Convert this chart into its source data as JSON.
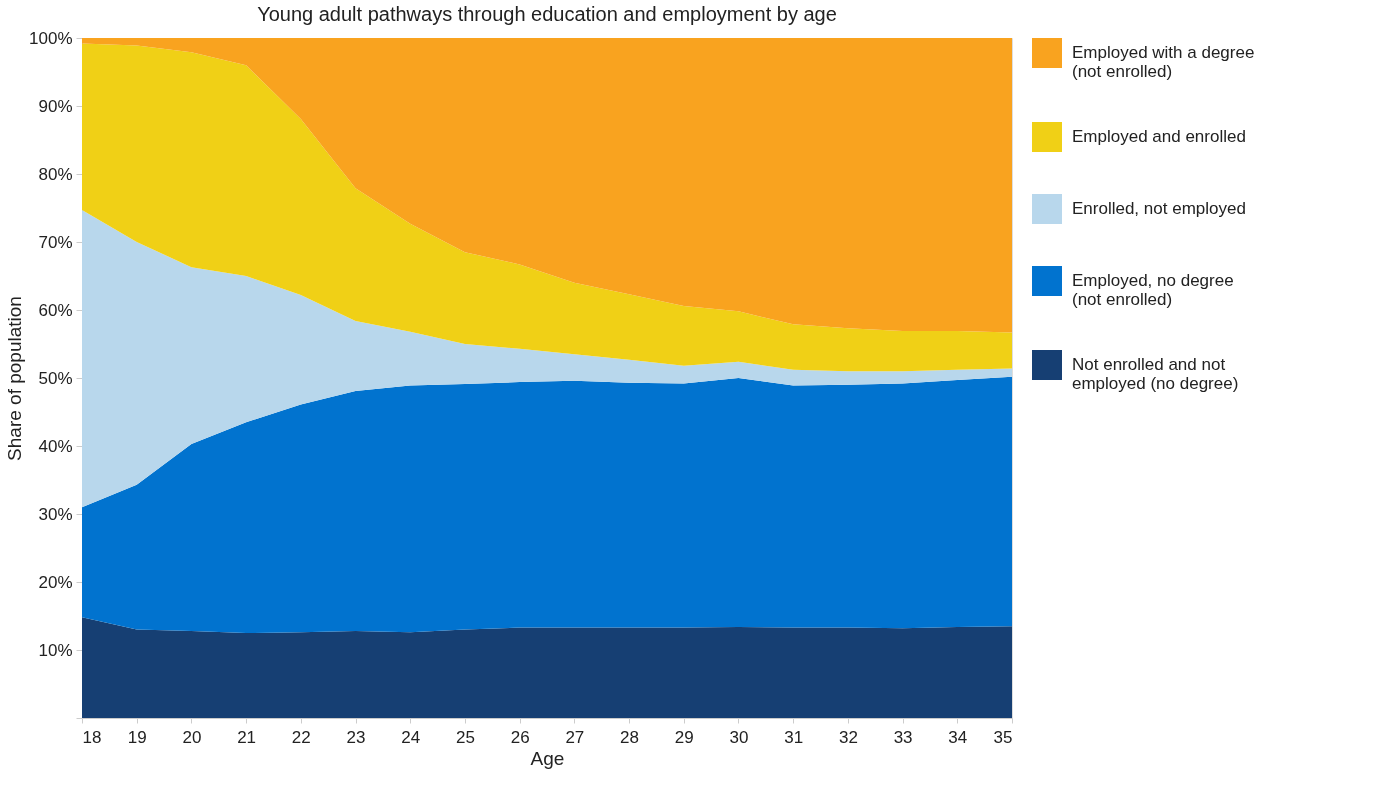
{
  "chart_data": {
    "type": "area",
    "stacked": true,
    "title": "Young adult pathways through education and employment by age",
    "xlabel": "Age",
    "ylabel": "Share of population",
    "x": [
      18,
      19,
      20,
      21,
      22,
      23,
      24,
      25,
      26,
      27,
      28,
      29,
      30,
      31,
      32,
      33,
      34,
      35
    ],
    "xlim": [
      18,
      35
    ],
    "xticks": [
      18,
      19,
      20,
      21,
      22,
      23,
      24,
      25,
      26,
      27,
      28,
      29,
      30,
      31,
      32,
      33,
      34,
      35
    ],
    "ylim": [
      0,
      100
    ],
    "yticks": [
      {
        "value": 0,
        "label": null
      },
      {
        "value": 10,
        "label": "10%"
      },
      {
        "value": 20,
        "label": "20%"
      },
      {
        "value": 30,
        "label": "30%"
      },
      {
        "value": 40,
        "label": "40%"
      },
      {
        "value": 50,
        "label": "50%"
      },
      {
        "value": 60,
        "label": "60%"
      },
      {
        "value": 70,
        "label": "70%"
      },
      {
        "value": 80,
        "label": "80%"
      },
      {
        "value": 90,
        "label": "90%"
      },
      {
        "value": 100,
        "label": "100%"
      }
    ],
    "grid": false,
    "legend": "right",
    "series": [
      {
        "name": "Not enrolled and not employed (no degree)",
        "color": "#163f73",
        "values": [
          14.8,
          13.0,
          12.8,
          12.5,
          12.6,
          12.8,
          12.6,
          13.0,
          13.3,
          13.3,
          13.3,
          13.3,
          13.4,
          13.3,
          13.3,
          13.2,
          13.4,
          13.5
        ]
      },
      {
        "name": "Employed, no degree (not enrolled)",
        "color": "#0173cf",
        "values": [
          16.2,
          21.3,
          27.5,
          31.0,
          33.5,
          35.3,
          36.3,
          36.1,
          36.1,
          36.3,
          36.0,
          35.9,
          36.6,
          35.6,
          35.7,
          36.0,
          36.3,
          36.7
        ]
      },
      {
        "name": "Enrolled, not employed",
        "color": "#b8d7ec",
        "values": [
          43.7,
          35.7,
          26.0,
          21.5,
          16.1,
          10.3,
          7.9,
          5.9,
          4.9,
          3.9,
          3.4,
          2.6,
          2.4,
          2.3,
          2.0,
          1.8,
          1.5,
          1.2
        ]
      },
      {
        "name": "Employed and enrolled",
        "color": "#f0d016",
        "values": [
          24.5,
          28.9,
          31.6,
          31.0,
          25.9,
          19.5,
          15.9,
          13.5,
          12.4,
          10.5,
          9.6,
          8.8,
          7.4,
          6.7,
          6.3,
          5.9,
          5.7,
          5.3
        ]
      },
      {
        "name": "Employed with a degree (not enrolled)",
        "color": "#f9a31f",
        "values": [
          0.8,
          1.1,
          2.1,
          4.0,
          11.9,
          22.1,
          27.3,
          31.5,
          33.3,
          36.0,
          37.7,
          39.4,
          40.2,
          42.1,
          42.7,
          43.1,
          43.1,
          43.3
        ]
      }
    ]
  }
}
